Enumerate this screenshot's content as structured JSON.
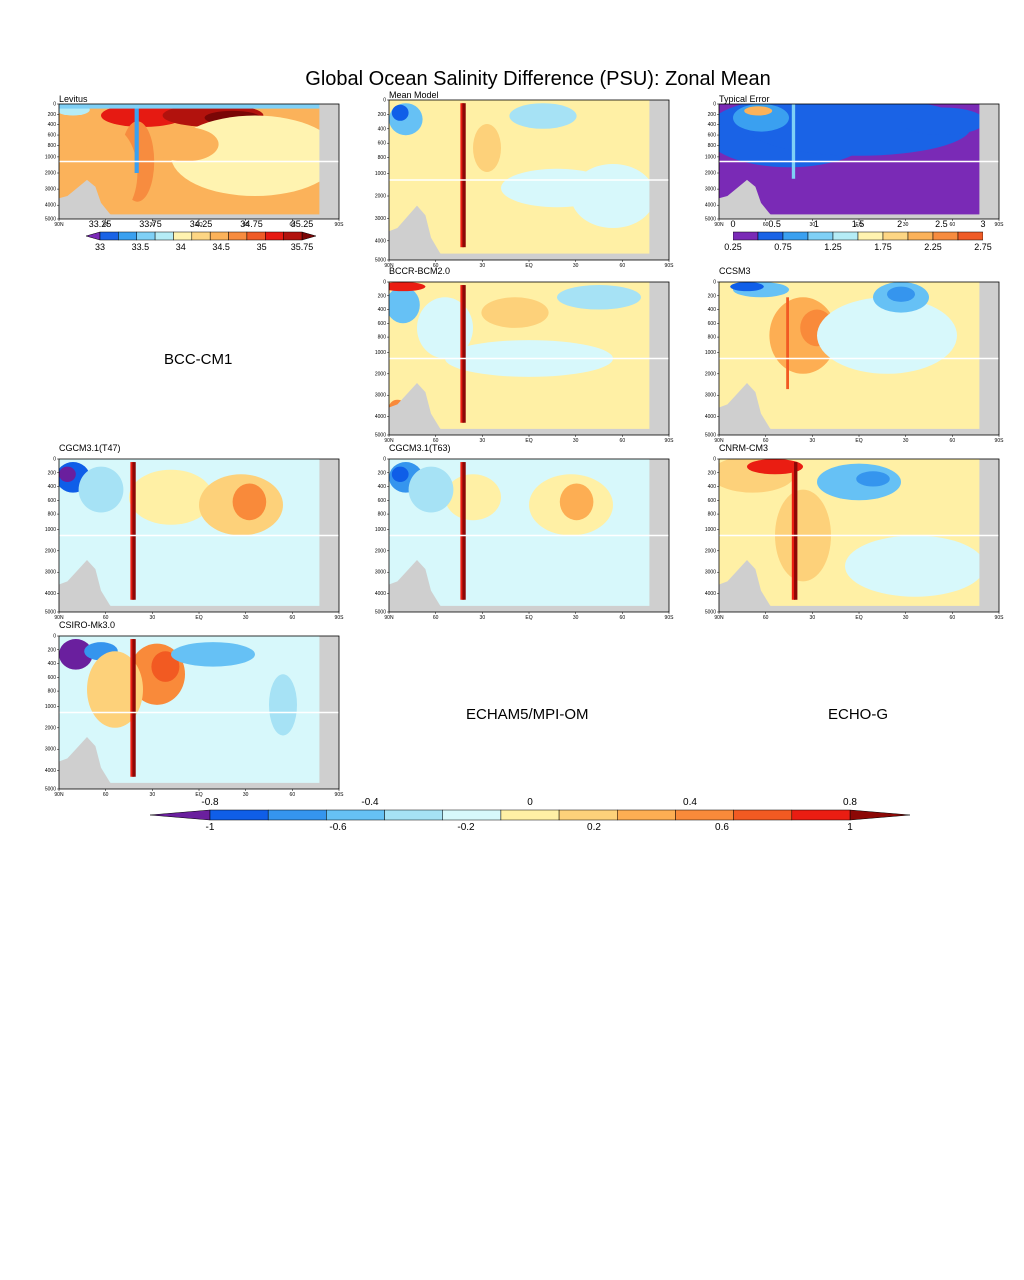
{
  "title": "Global Ocean Salinity Difference (PSU): Zonal Mean",
  "missing_models": [
    "BCC-CM1",
    "ECHAM5/MPI-OM",
    "ECHO-G"
  ],
  "colors": {
    "land": "#cfcfcf",
    "diff_scale": [
      "#6a1f9e",
      "#0f5ee8",
      "#3595ee",
      "#66c1f5",
      "#a6e2f5",
      "#d7f8fb",
      "#fff0a5",
      "#fdd17a",
      "#fdae53",
      "#f98a3a",
      "#f25a22",
      "#ea1d12",
      "#8c0806"
    ],
    "abs_scale": [
      "#7a2ab6",
      "#1a63e6",
      "#3aa0f0",
      "#7fd0f6",
      "#b5ecf6",
      "#fff3b0",
      "#fdd684",
      "#fbb25a",
      "#f78c3f",
      "#ef5b26",
      "#e61a12",
      "#b2120d",
      "#7a0606"
    ]
  },
  "axes": {
    "x_ticks": [
      "90N",
      "60",
      "30",
      "EQ",
      "30",
      "60",
      "90S"
    ],
    "y_ticks_main": [
      "0",
      "200",
      "400",
      "600",
      "800",
      "1000",
      "2000",
      "3000",
      "4000",
      "5000"
    ],
    "y_ticks_mean": [
      "0",
      "200",
      "400",
      "600",
      "800",
      "1000",
      "2000",
      "3000",
      "4000",
      "5000"
    ]
  },
  "chart_data": [
    {
      "type": "heatmap",
      "title": "Levitus",
      "field": "absolute",
      "xlabel": "",
      "ylabel": ""
    },
    {
      "type": "heatmap",
      "title": "Mean Model",
      "field": "difference",
      "xlabel": "",
      "ylabel": ""
    },
    {
      "type": "heatmap",
      "title": "Typical Error",
      "field": "typical_error",
      "xlabel": "",
      "ylabel": ""
    },
    {
      "type": "heatmap",
      "title": "BCCR-BCM2.0",
      "field": "difference",
      "xlabel": "",
      "ylabel": ""
    },
    {
      "type": "heatmap",
      "title": "CCSM3",
      "field": "difference",
      "xlabel": "",
      "ylabel": ""
    },
    {
      "type": "heatmap",
      "title": "CGCM3.1(T47)",
      "field": "difference",
      "xlabel": "",
      "ylabel": ""
    },
    {
      "type": "heatmap",
      "title": "CGCM3.1(T63)",
      "field": "difference",
      "xlabel": "",
      "ylabel": ""
    },
    {
      "type": "heatmap",
      "title": "CNRM-CM3",
      "field": "difference",
      "xlabel": "",
      "ylabel": ""
    },
    {
      "type": "heatmap",
      "title": "CSIRO-Mk3.0",
      "field": "difference",
      "xlabel": "",
      "ylabel": ""
    }
  ],
  "colorbars": {
    "levitus": {
      "top_labels": [
        "33.25",
        "33.75",
        "34.25",
        "34.75",
        "35.25"
      ],
      "bottom_labels": [
        "33",
        "33.5",
        "34",
        "34.5",
        "35",
        "35.75"
      ]
    },
    "typical_error": {
      "top_labels": [
        "0",
        "0.5",
        "1",
        "1.5",
        "2",
        "2.5",
        "3"
      ],
      "bottom_labels": [
        "0.25",
        "0.75",
        "1.25",
        "1.75",
        "2.25",
        "2.75"
      ]
    },
    "difference": {
      "top_labels": [
        "-0.8",
        "-0.4",
        "0",
        "0.4",
        "0.8"
      ],
      "bottom_labels": [
        "-1",
        "-0.6",
        "-0.2",
        "0.2",
        "0.6",
        "1"
      ]
    }
  }
}
